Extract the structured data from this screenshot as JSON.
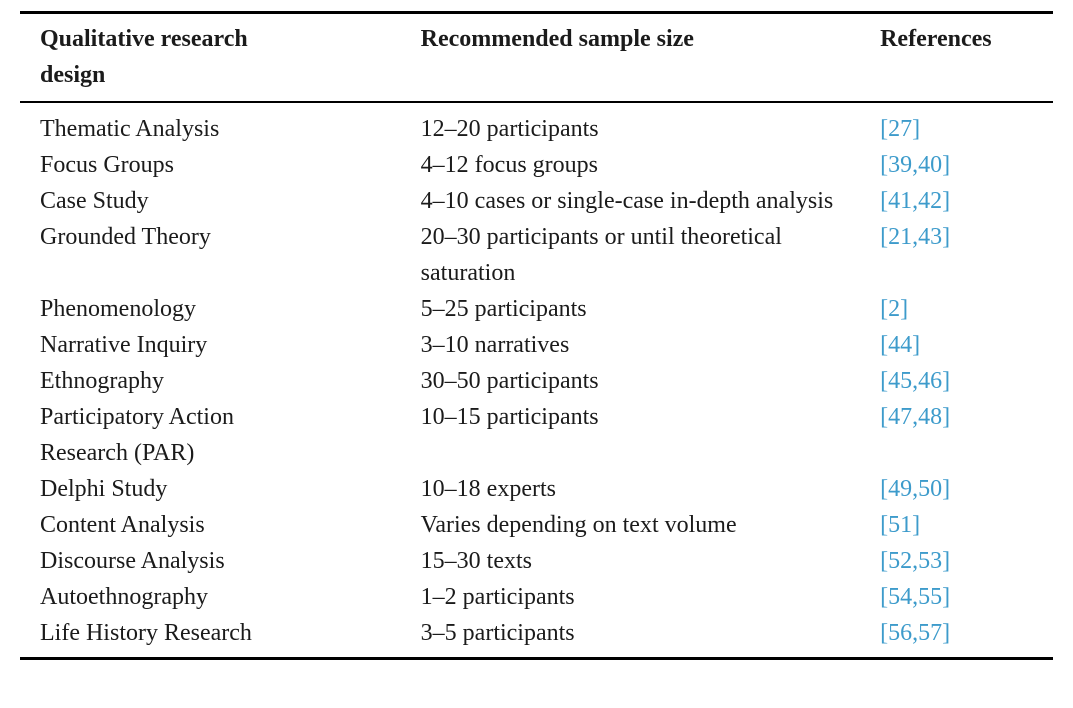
{
  "table": {
    "columns": [
      {
        "label": "Qualitative research design"
      },
      {
        "label": "Recommended sample size"
      },
      {
        "label": "References"
      }
    ],
    "rows": [
      {
        "design": "Thematic Analysis",
        "sample_size": "12–20 participants",
        "references": "[27]"
      },
      {
        "design": "Focus Groups",
        "sample_size": "4–12 focus groups",
        "references": "[39,40]"
      },
      {
        "design": "Case Study",
        "sample_size": "4–10 cases or single-case in-depth analysis",
        "references": "[41,42]"
      },
      {
        "design": "Grounded Theory",
        "sample_size": "20–30 participants or until theoretical saturation",
        "references": "[21,43]"
      },
      {
        "design": "Phenomenology",
        "sample_size": "5–25 participants",
        "references": "[2]"
      },
      {
        "design": "Narrative Inquiry",
        "sample_size": "3–10 narratives",
        "references": "[44]"
      },
      {
        "design": "Ethnography",
        "sample_size": "30–50 participants",
        "references": "[45,46]"
      },
      {
        "design": "Participatory Action Research (PAR)",
        "sample_size": "10–15 participants",
        "references": "[47,48]"
      },
      {
        "design": "Delphi Study",
        "sample_size": "10–18 experts",
        "references": "[49,50]"
      },
      {
        "design": "Content Analysis",
        "sample_size": "Varies depending on text volume",
        "references": "[51]"
      },
      {
        "design": "Discourse Analysis",
        "sample_size": "15–30 texts",
        "references": "[52,53]"
      },
      {
        "design": "Autoethnography",
        "sample_size": "1–2 participants",
        "references": "[54,55]"
      },
      {
        "design": "Life History Research",
        "sample_size": "3–5 participants",
        "references": "[56,57]"
      }
    ],
    "colors": {
      "reference_link": "#3d9bcb",
      "text": "#1b1b1b",
      "rule": "#000000",
      "background": "#ffffff"
    }
  }
}
